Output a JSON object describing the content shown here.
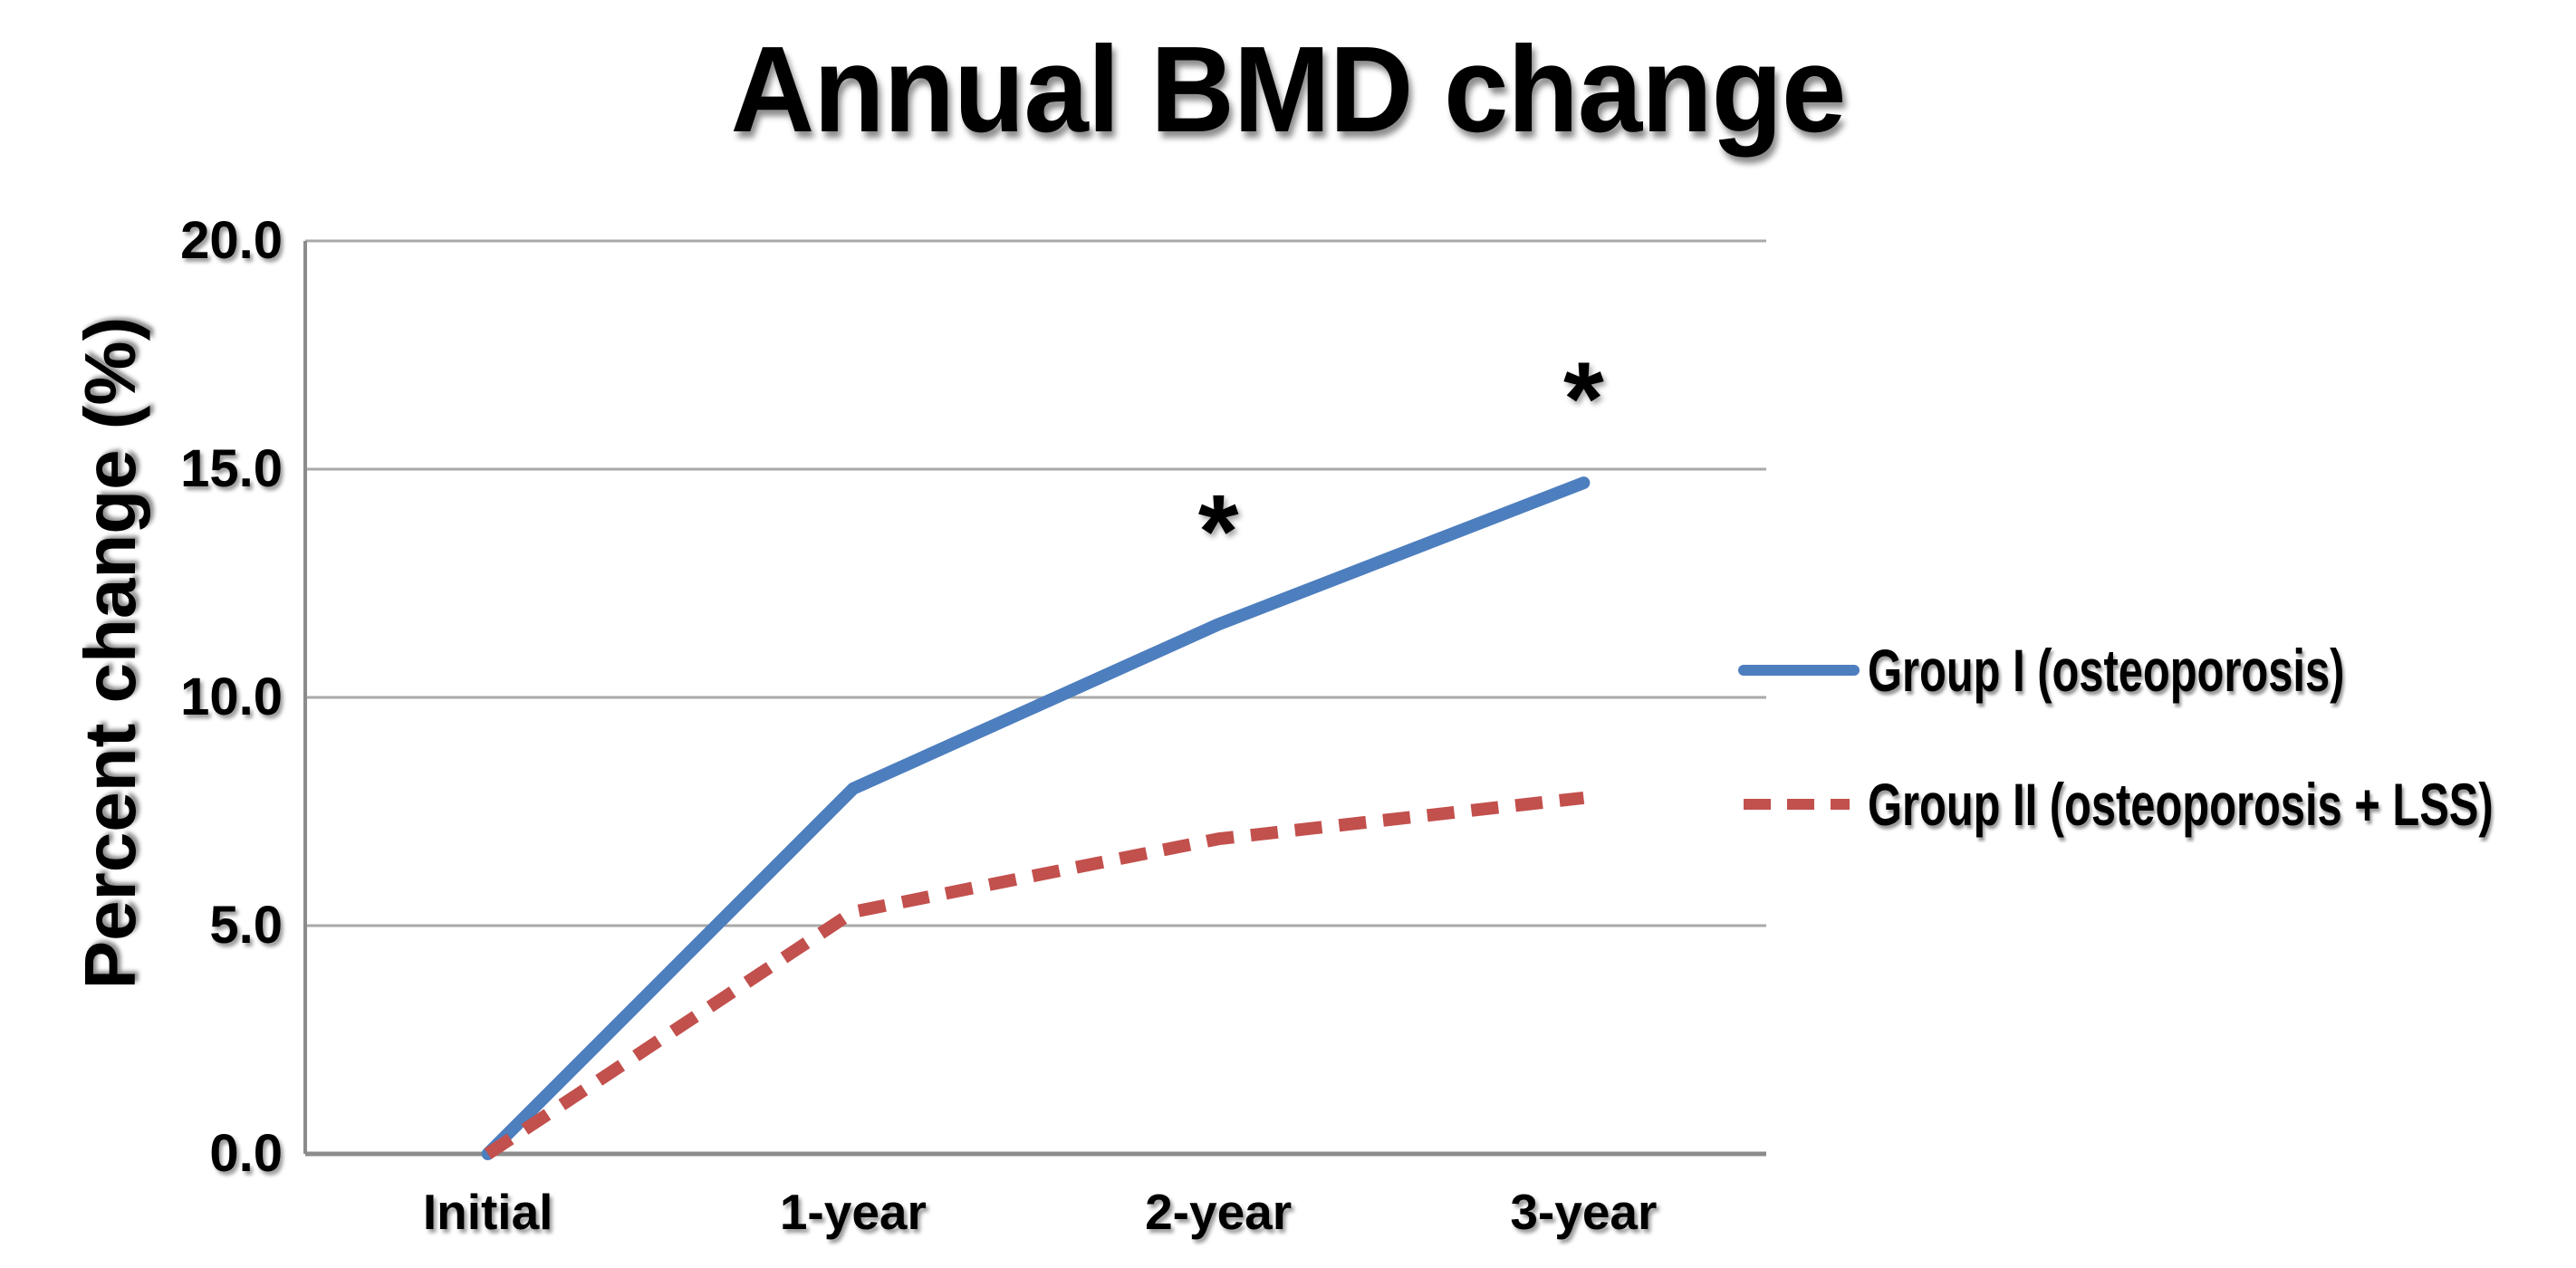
{
  "page": {
    "background": "#ffffff"
  },
  "chart_data": {
    "type": "line",
    "title": "Annual BMD change",
    "ylabel": "Percent change (%)",
    "xlabel": "",
    "categories": [
      "Initial",
      "1-year",
      "2-year",
      "3-year"
    ],
    "series": [
      {
        "name": "Group I (osteoporosis)",
        "values": [
          0.0,
          8.0,
          11.6,
          14.7
        ],
        "color": "#4D7EBE",
        "line_style": "solid"
      },
      {
        "name": "Group II (osteoporosis + LSS)",
        "values": [
          0.0,
          5.3,
          6.9,
          7.8
        ],
        "color": "#C2504D",
        "line_style": "dashed"
      }
    ],
    "ylim": [
      0,
      20
    ],
    "yticks": [
      0,
      5,
      10,
      15,
      20
    ],
    "ytick_labels": [
      "0.0",
      "5.0",
      "10.0",
      "15.0",
      "20.0"
    ],
    "grid": true,
    "legend_position": "right-middle",
    "annotations": [
      {
        "text": "*",
        "category_index": 2,
        "y": 14.0,
        "meaning": "significance-marker-2-year"
      },
      {
        "text": "*",
        "category_index": 3,
        "y": 16.9,
        "meaning": "significance-marker-3-year"
      }
    ]
  },
  "colors": {
    "grid": "#A9A9A9",
    "axis": "#8C8C8C",
    "text": "#000000"
  }
}
